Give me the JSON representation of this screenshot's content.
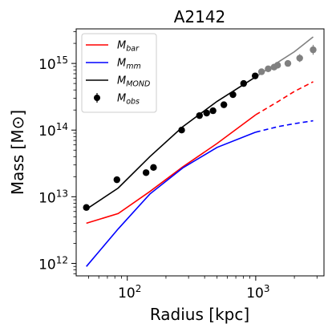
{
  "chart_data": {
    "type": "line",
    "title": "A2142",
    "xlabel": "Radius [kpc]",
    "ylabel": "Mass [M⊙]",
    "xscale": "log",
    "yscale": "log",
    "xlim": [
      40,
      3400
    ],
    "ylim": [
      650000000000.0,
      3300000000000000.0
    ],
    "grid": false,
    "legend_position": "upper left",
    "x_ticks": [
      {
        "value": 100,
        "base": "10",
        "exp": "2"
      },
      {
        "value": 1000,
        "base": "10",
        "exp": "3"
      }
    ],
    "y_ticks": [
      {
        "value": 1000000000000.0,
        "base": "10",
        "exp": "12"
      },
      {
        "value": 10000000000000.0,
        "base": "10",
        "exp": "13"
      },
      {
        "value": 100000000000000.0,
        "base": "10",
        "exp": "14"
      },
      {
        "value": 1000000000000000.0,
        "base": "10",
        "exp": "15"
      }
    ],
    "series": [
      {
        "name": "M_bar",
        "legend_main": "M",
        "legend_sub": "bar",
        "kind": "line",
        "color": "#ff0000",
        "x": [
          48,
          85,
          150,
          270,
          500,
          1000
        ],
        "y": [
          4000000000000.0,
          5600000000000.0,
          12000000000000.0,
          28000000000000.0,
          63000000000000.0,
          170000000000000.0
        ]
      },
      {
        "name": "M_bar (extrapolated)",
        "kind": "dashed",
        "color": "#ff0000",
        "x": [
          1000,
          1500,
          2000,
          2800
        ],
        "y": [
          170000000000000.0,
          270000000000000.0,
          380000000000000.0,
          530000000000000.0
        ]
      },
      {
        "name": "M_mm",
        "legend_main": "M",
        "legend_sub": "mm",
        "kind": "line",
        "color": "#0000ff",
        "x": [
          48,
          85,
          150,
          270,
          500,
          1000
        ],
        "y": [
          900000000000.0,
          3300000000000.0,
          11000000000000.0,
          27000000000000.0,
          55000000000000.0,
          93000000000000.0
        ]
      },
      {
        "name": "M_mm (extrapolated)",
        "kind": "dashed",
        "color": "#0000ff",
        "x": [
          1000,
          1500,
          2000,
          2800
        ],
        "y": [
          93000000000000.0,
          113000000000000.0,
          125000000000000.0,
          138000000000000.0
        ]
      },
      {
        "name": "M_MOND",
        "legend_main": "M",
        "legend_sub": "MOND",
        "kind": "line",
        "color": "#000000",
        "x": [
          48,
          85,
          150,
          270,
          500,
          1000
        ],
        "y": [
          6500000000000.0,
          13500000000000.0,
          40000000000000.0,
          112000000000000.0,
          270000000000000.0,
          630000000000000.0
        ]
      },
      {
        "name": "M_MOND (extrapolated)",
        "kind": "line",
        "color": "#808080",
        "x": [
          1000,
          1500,
          2000,
          2800
        ],
        "y": [
          630000000000000.0,
          1050000000000000.0,
          1500000000000000.0,
          2500000000000000.0
        ]
      },
      {
        "name": "M_obs",
        "legend_main": "M",
        "legend_sub": "obs",
        "kind": "points",
        "color": "#000000",
        "x": [
          48,
          83,
          140,
          160,
          265,
          365,
          415,
          465,
          565,
          665,
          805,
          990
        ],
        "y": [
          6900000000000.0,
          18000000000000.0,
          23000000000000.0,
          27500000000000.0,
          100000000000000.0,
          165000000000000.0,
          180000000000000.0,
          195000000000000.0,
          240000000000000.0,
          340000000000000.0,
          500000000000000.0,
          650000000000000.0
        ],
        "err_lo": [
          6700000000000.0,
          17500000000000.0,
          22500000000000.0,
          27000000000000.0,
          97000000000000.0,
          160000000000000.0,
          175000000000000.0,
          190000000000000.0,
          230000000000000.0,
          310000000000000.0,
          480000000000000.0,
          620000000000000.0
        ],
        "err_hi": [
          7100000000000.0,
          18500000000000.0,
          23500000000000.0,
          28000000000000.0,
          103000000000000.0,
          170000000000000.0,
          185000000000000.0,
          200000000000000.0,
          250000000000000.0,
          370000000000000.0,
          520000000000000.0,
          680000000000000.0
        ]
      },
      {
        "name": "M_obs (outer)",
        "kind": "points",
        "color": "#808080",
        "x": [
          1110,
          1250,
          1390,
          1480,
          1780,
          2200,
          2800
        ],
        "y": [
          750000000000000.0,
          830000000000000.0,
          880000000000000.0,
          940000000000000.0,
          1000000000000000.0,
          1200000000000000.0,
          1600000000000000.0
        ],
        "err_lo": [
          730000000000000.0,
          800000000000000.0,
          840000000000000.0,
          890000000000000.0,
          930000000000000.0,
          1050000000000000.0,
          1350000000000000.0
        ],
        "err_hi": [
          770000000000000.0,
          860000000000000.0,
          920000000000000.0,
          990000000000000.0,
          1080000000000000.0,
          1380000000000000.0,
          1900000000000000.0
        ]
      }
    ]
  }
}
